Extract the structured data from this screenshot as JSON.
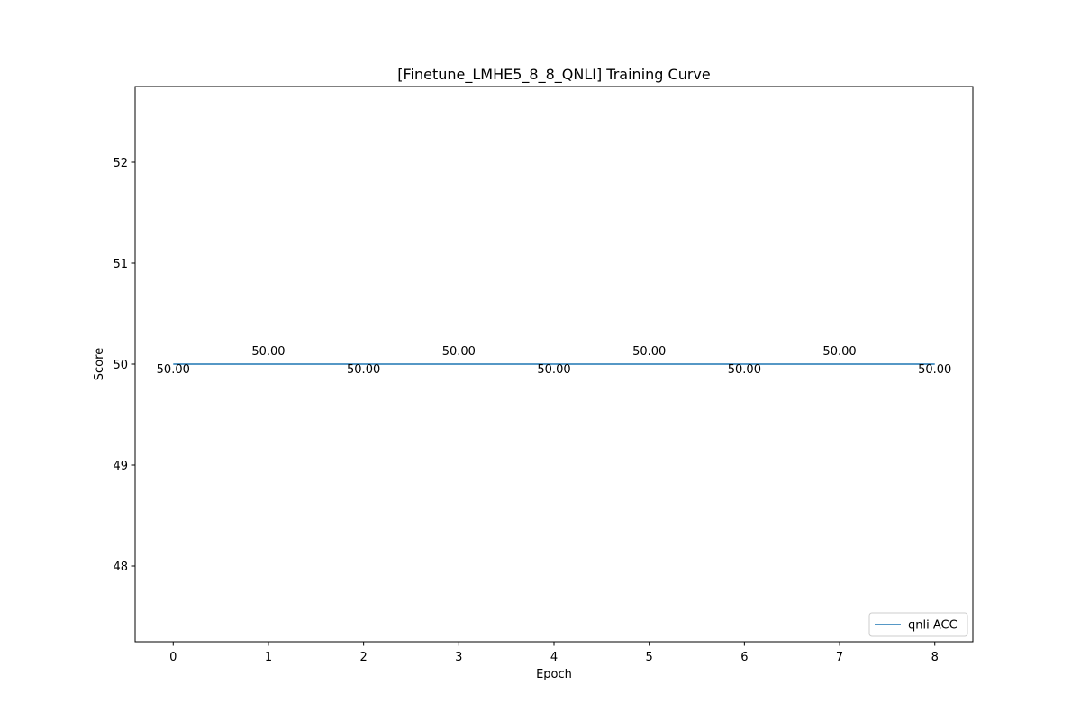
{
  "chart_data": {
    "type": "line",
    "title": "[Finetune_LMHE5_8_8_QNLI] Training Curve",
    "xlabel": "Epoch",
    "ylabel": "Score",
    "x": [
      0,
      1,
      2,
      3,
      4,
      5,
      6,
      7,
      8
    ],
    "xlim": [
      -0.4,
      8.4
    ],
    "ylim": [
      47.25,
      52.75
    ],
    "xticks": [
      0,
      1,
      2,
      3,
      4,
      5,
      6,
      7,
      8
    ],
    "yticks": [
      48,
      49,
      50,
      51,
      52
    ],
    "grid": false,
    "legend_location": "bottom-right",
    "series": [
      {
        "name": "qnli ACC",
        "color": "#1f77b4",
        "values": [
          50,
          50,
          50,
          50,
          50,
          50,
          50,
          50,
          50
        ],
        "data_labels": [
          "50.00",
          "50.00",
          "50.00",
          "50.00",
          "50.00",
          "50.00",
          "50.00",
          "50.00",
          "50.00"
        ]
      }
    ]
  }
}
